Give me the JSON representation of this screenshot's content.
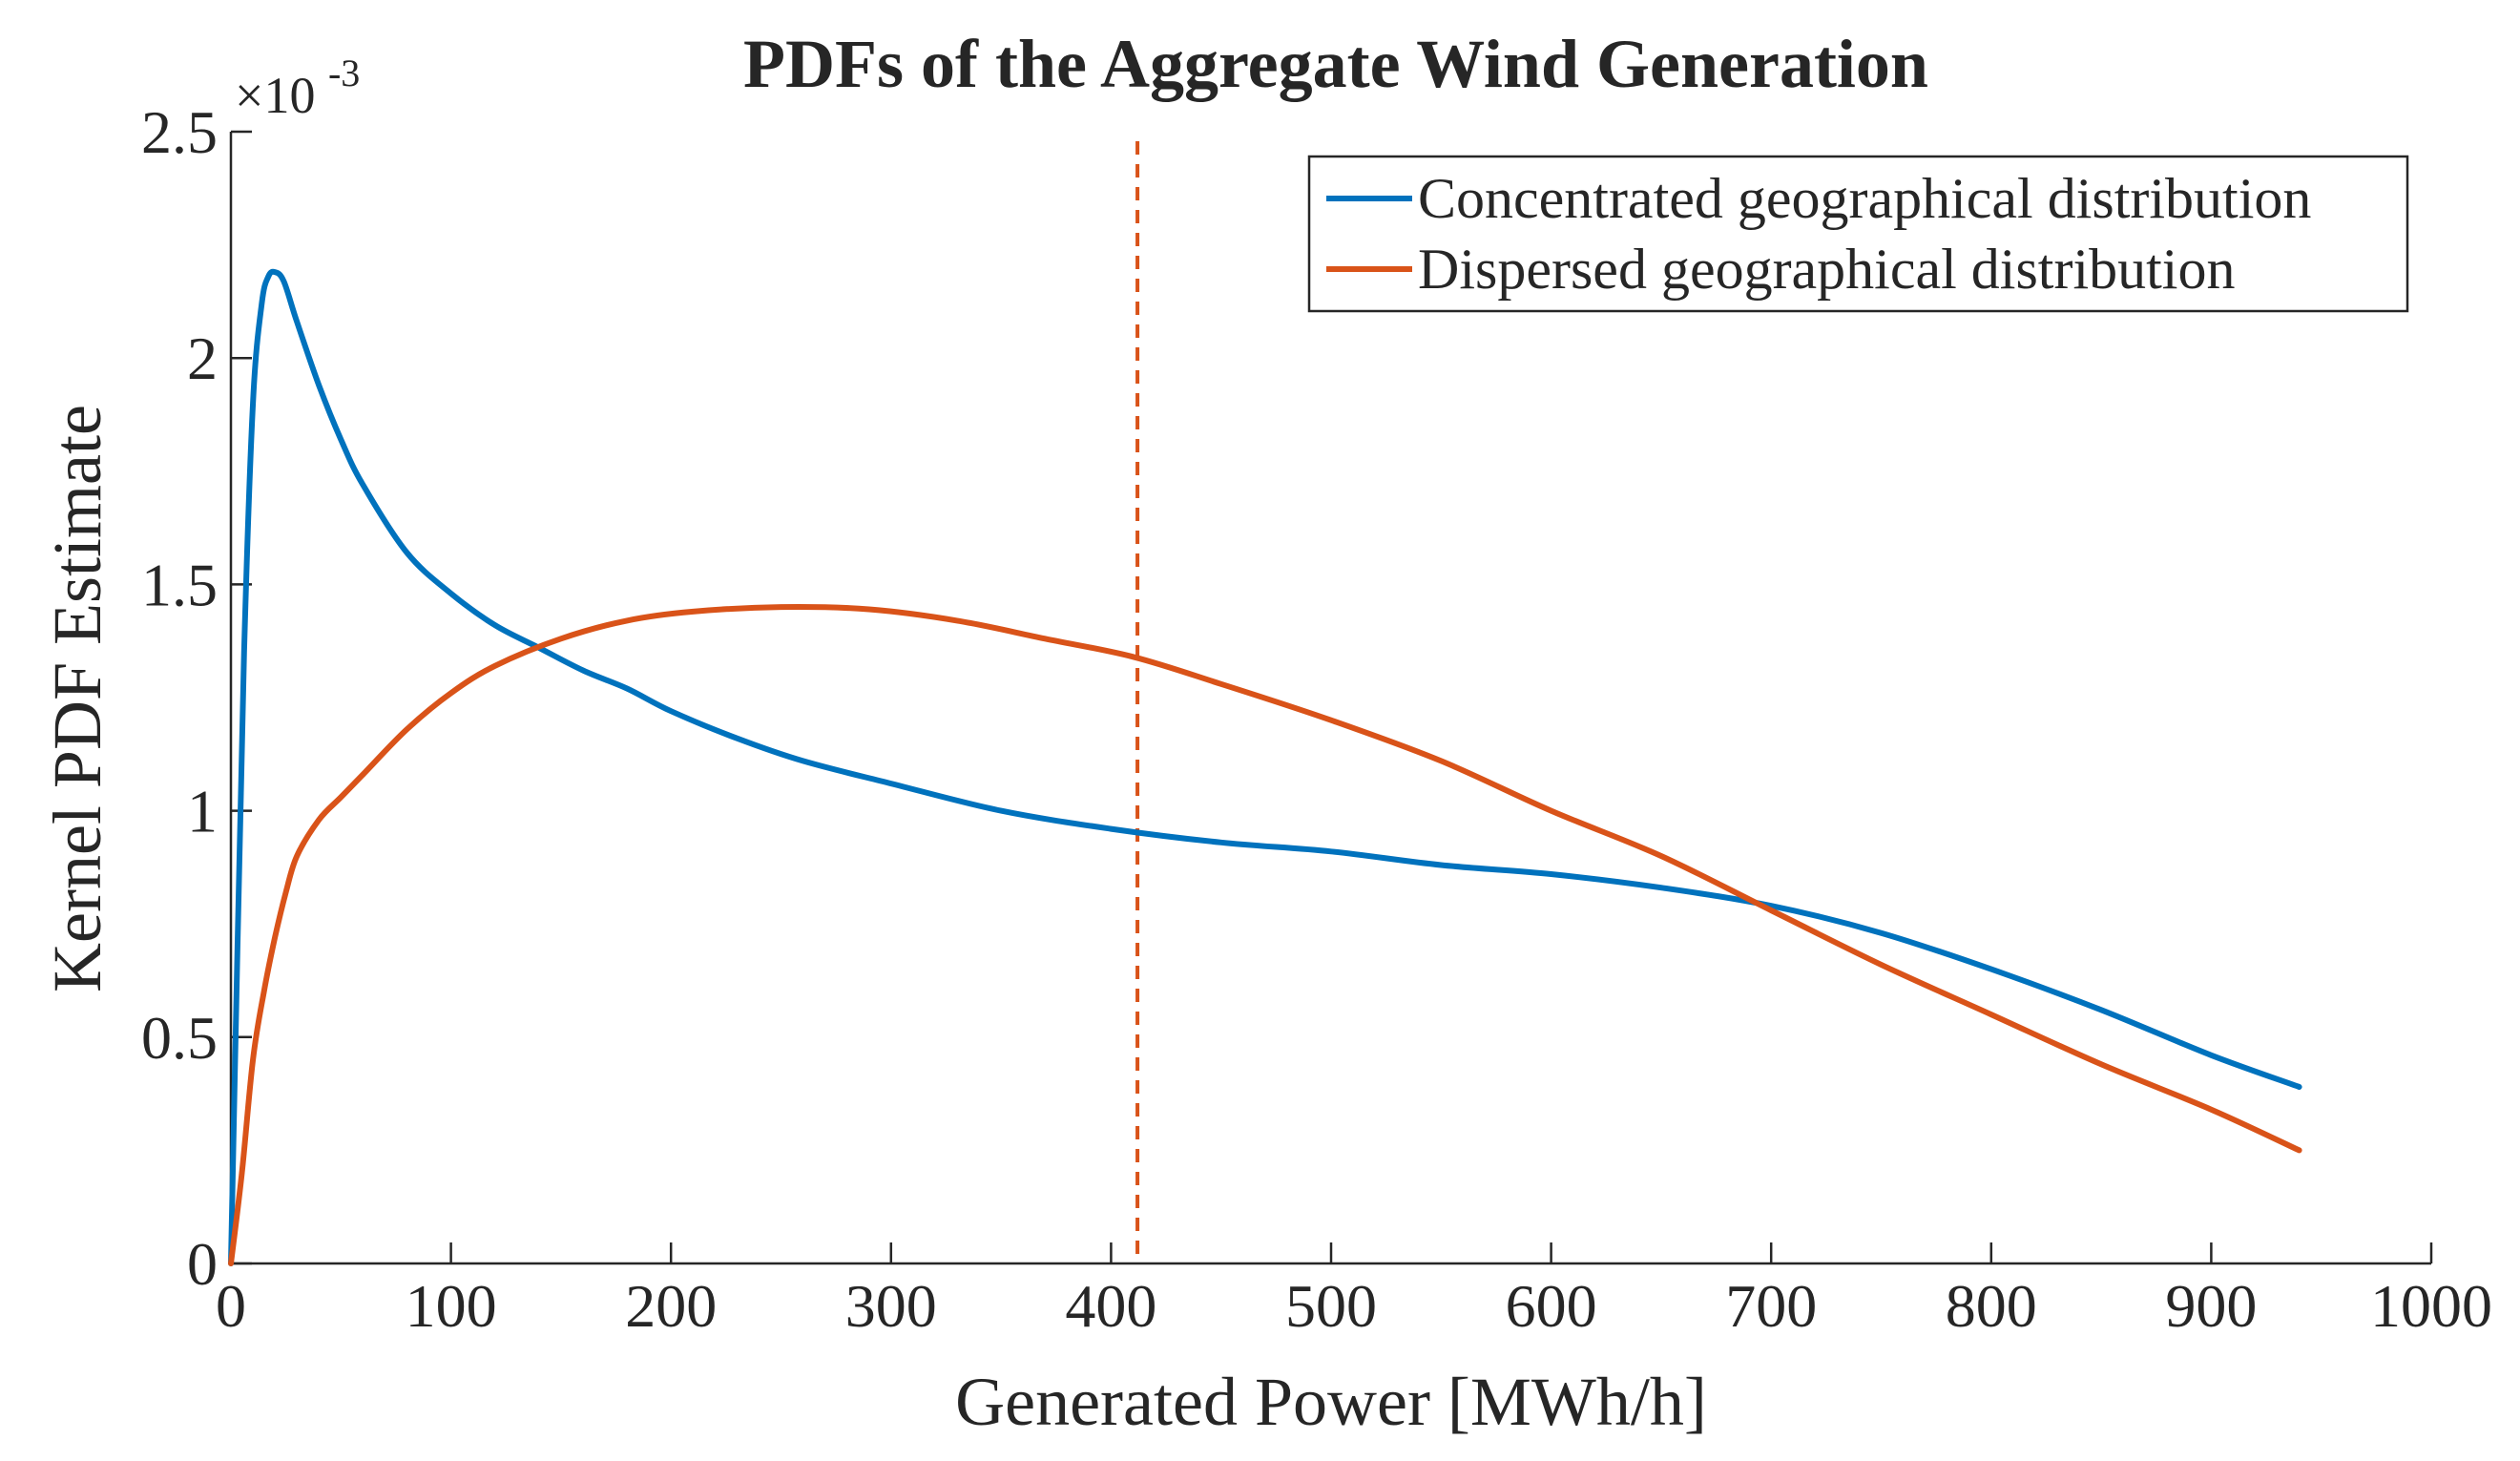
{
  "chart_data": {
    "type": "line",
    "title": "PDFs of the Aggregate Wind Generation",
    "xlabel": "Generated Power [MWh/h]",
    "ylabel": "Kernel PDF Estimate",
    "y_exponent_label": "×10",
    "y_exponent_power": "-3",
    "xlim": [
      0,
      1000
    ],
    "ylim": [
      0,
      2.5
    ],
    "x_ticks": [
      0,
      100,
      200,
      300,
      400,
      500,
      600,
      700,
      800,
      900,
      1000
    ],
    "x_tick_labels": [
      "0",
      "100",
      "200",
      "300",
      "400",
      "500",
      "600",
      "700",
      "800",
      "900",
      "1000"
    ],
    "y_ticks": [
      0,
      0.5,
      1,
      1.5,
      2,
      2.5
    ],
    "y_tick_labels": [
      "0",
      "0.5",
      "1",
      "1.5",
      "2",
      "2.5"
    ],
    "grid": false,
    "legend_position": "top-right",
    "series": [
      {
        "name": "Concentrated geographical distribution",
        "color": "#0072BD",
        "points": [
          [
            0,
            0
          ],
          [
            3,
            0.7
          ],
          [
            6,
            1.35
          ],
          [
            10,
            1.9
          ],
          [
            14,
            2.12
          ],
          [
            17,
            2.18
          ],
          [
            20,
            2.19
          ],
          [
            24,
            2.17
          ],
          [
            30,
            2.08
          ],
          [
            40,
            1.94
          ],
          [
            50,
            1.82
          ],
          [
            60,
            1.72
          ],
          [
            80,
            1.57
          ],
          [
            100,
            1.48
          ],
          [
            120,
            1.41
          ],
          [
            140,
            1.36
          ],
          [
            160,
            1.31
          ],
          [
            180,
            1.27
          ],
          [
            200,
            1.22
          ],
          [
            230,
            1.16
          ],
          [
            260,
            1.11
          ],
          [
            300,
            1.06
          ],
          [
            350,
            1.0
          ],
          [
            400,
            0.96
          ],
          [
            450,
            0.93
          ],
          [
            500,
            0.91
          ],
          [
            550,
            0.88
          ],
          [
            600,
            0.86
          ],
          [
            650,
            0.83
          ],
          [
            700,
            0.79
          ],
          [
            750,
            0.73
          ],
          [
            800,
            0.65
          ],
          [
            850,
            0.56
          ],
          [
            900,
            0.46
          ],
          [
            940,
            0.39
          ]
        ]
      },
      {
        "name": "Dispersed geographical distribution",
        "color": "#D95319",
        "points": [
          [
            0,
            0
          ],
          [
            5,
            0.2
          ],
          [
            10,
            0.45
          ],
          [
            15,
            0.6
          ],
          [
            20,
            0.72
          ],
          [
            25,
            0.82
          ],
          [
            30,
            0.9
          ],
          [
            40,
            0.98
          ],
          [
            50,
            1.03
          ],
          [
            60,
            1.08
          ],
          [
            80,
            1.18
          ],
          [
            100,
            1.26
          ],
          [
            120,
            1.32
          ],
          [
            150,
            1.38
          ],
          [
            180,
            1.42
          ],
          [
            210,
            1.44
          ],
          [
            250,
            1.45
          ],
          [
            290,
            1.445
          ],
          [
            330,
            1.42
          ],
          [
            370,
            1.38
          ],
          [
            410,
            1.34
          ],
          [
            450,
            1.28
          ],
          [
            500,
            1.2
          ],
          [
            550,
            1.11
          ],
          [
            600,
            1.0
          ],
          [
            650,
            0.9
          ],
          [
            700,
            0.78
          ],
          [
            750,
            0.66
          ],
          [
            800,
            0.55
          ],
          [
            850,
            0.44
          ],
          [
            900,
            0.34
          ],
          [
            940,
            0.25
          ]
        ]
      }
    ],
    "reference_line": {
      "x": 412,
      "color": "#D95319",
      "style": "dashed"
    }
  }
}
